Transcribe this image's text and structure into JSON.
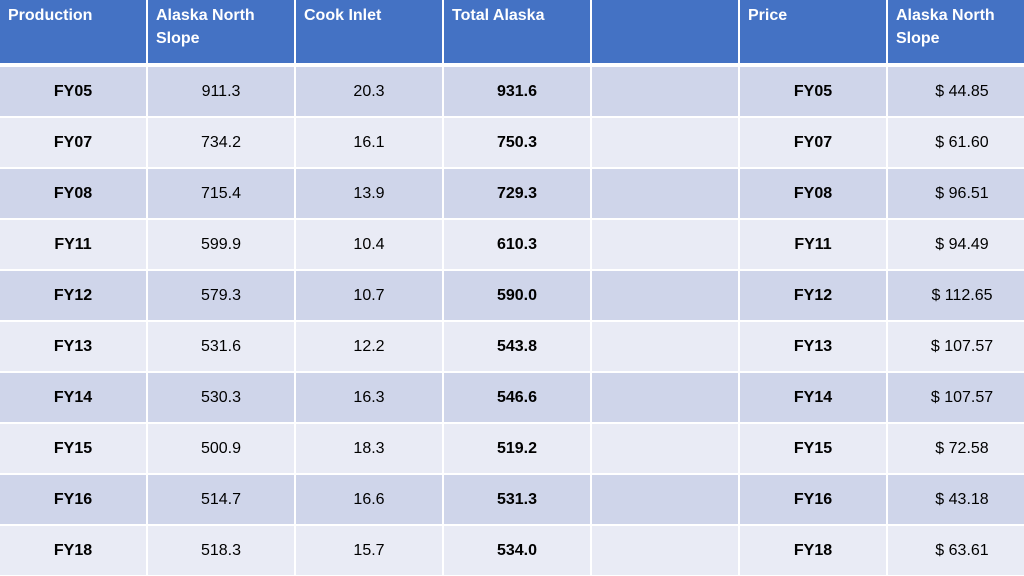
{
  "headers": [
    "Production",
    "Alaska North\nSlope",
    "Cook Inlet",
    "Total Alaska",
    "",
    "Price",
    "Alaska North\nSlope"
  ],
  "rows": [
    {
      "year": "FY05",
      "ans": "911.3",
      "cook": "20.3",
      "total": "931.6",
      "price_year": "FY05",
      "price": "$ 44.85"
    },
    {
      "year": "FY07",
      "ans": "734.2",
      "cook": "16.1",
      "total": "750.3",
      "price_year": "FY07",
      "price": "$ 61.60"
    },
    {
      "year": "FY08",
      "ans": "715.4",
      "cook": "13.9",
      "total": "729.3",
      "price_year": "FY08",
      "price": "$ 96.51"
    },
    {
      "year": "FY11",
      "ans": "599.9",
      "cook": "10.4",
      "total": "610.3",
      "price_year": "FY11",
      "price": "$ 94.49"
    },
    {
      "year": "FY12",
      "ans": "579.3",
      "cook": "10.7",
      "total": "590.0",
      "price_year": "FY12",
      "price": "$ 112.65"
    },
    {
      "year": "FY13",
      "ans": "531.6",
      "cook": "12.2",
      "total": "543.8",
      "price_year": "FY13",
      "price": "$ 107.57"
    },
    {
      "year": "FY14",
      "ans": "530.3",
      "cook": "16.3",
      "total": "546.6",
      "price_year": "FY14",
      "price": "$ 107.57"
    },
    {
      "year": "FY15",
      "ans": "500.9",
      "cook": "18.3",
      "total": "519.2",
      "price_year": "FY15",
      "price": "$ 72.58"
    },
    {
      "year": "FY16",
      "ans": "514.7",
      "cook": "16.6",
      "total": "531.3",
      "price_year": "FY16",
      "price": "$ 43.18"
    },
    {
      "year": "FY18",
      "ans": "518.3",
      "cook": "15.7",
      "total": "534.0",
      "price_year": "FY18",
      "price": "$ 63.61"
    }
  ],
  "colors": {
    "header_bg": "#4472c4",
    "band_dark": "#cfd5ea",
    "band_light": "#e9ebf5"
  }
}
